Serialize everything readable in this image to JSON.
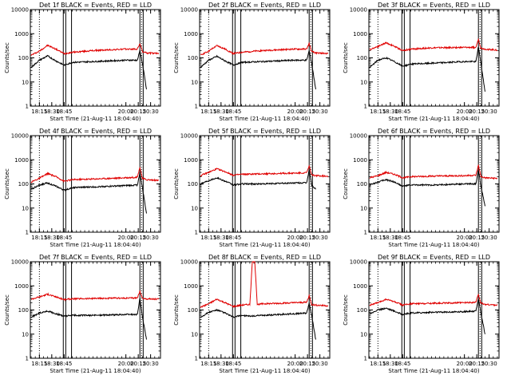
{
  "chart_data": [
    {
      "type": "line",
      "title": "Det 1f BLACK = Events, RED = LLD",
      "xlabel": "Start Time (21-Aug-11 18:04:40)",
      "ylabel": "Counts/sec",
      "yscale": "log",
      "ylim": [
        1,
        10000
      ],
      "xlim": [
        "18:04",
        "20:42"
      ],
      "xticks": [
        "18:15",
        "18:30",
        "18:45",
        "20:00",
        "20:15",
        "20:30"
      ],
      "yticks": [
        "1",
        "10",
        "100",
        "1000",
        "10000"
      ],
      "dotted_vlines": [
        "18:15",
        "20:19"
      ],
      "solid_vlines": [
        "18:44",
        "18:47",
        "18:54",
        "20:17",
        "20:21"
      ],
      "series": [
        {
          "color": "#e00000",
          "x": [
            "18:05",
            "18:15",
            "18:25",
            "18:35",
            "18:45",
            "18:55",
            "19:20",
            "20:00",
            "20:14",
            "20:17",
            "20:20",
            "20:25",
            "20:40"
          ],
          "y": [
            130,
            190,
            330,
            230,
            150,
            170,
            200,
            230,
            230,
            400,
            180,
            160,
            150
          ]
        },
        {
          "color": "#000000",
          "x": [
            "18:05",
            "18:15",
            "18:25",
            "18:35",
            "18:45",
            "18:55",
            "19:20",
            "20:00",
            "20:14",
            "20:17",
            "20:20",
            "20:25"
          ],
          "y": [
            40,
            80,
            120,
            75,
            50,
            65,
            70,
            80,
            80,
            200,
            60,
            5
          ]
        }
      ]
    },
    {
      "type": "line",
      "title": "Det 2f BLACK = Events, RED = LLD",
      "xlabel": "Start Time (21-Aug-11 18:04:40)",
      "ylabel": "Counts/sec",
      "yscale": "log",
      "ylim": [
        1,
        10000
      ],
      "xlim": [
        "18:04",
        "20:42"
      ],
      "xticks": [
        "18:15",
        "18:30",
        "18:45",
        "20:00",
        "20:15",
        "20:30"
      ],
      "yticks": [
        "1",
        "10",
        "100",
        "1000",
        "10000"
      ],
      "dotted_vlines": [
        "18:15",
        "20:19"
      ],
      "solid_vlines": [
        "18:44",
        "18:47",
        "18:54",
        "20:17",
        "20:21"
      ],
      "series": [
        {
          "color": "#e00000",
          "x": [
            "18:05",
            "18:15",
            "18:25",
            "18:35",
            "18:45",
            "18:55",
            "19:20",
            "20:00",
            "20:14",
            "20:17",
            "20:20",
            "20:25",
            "20:40"
          ],
          "y": [
            130,
            190,
            320,
            230,
            150,
            170,
            200,
            230,
            230,
            400,
            180,
            160,
            150
          ]
        },
        {
          "color": "#000000",
          "x": [
            "18:05",
            "18:15",
            "18:25",
            "18:35",
            "18:45",
            "18:55",
            "19:20",
            "20:00",
            "20:14",
            "20:17",
            "20:20",
            "20:25"
          ],
          "y": [
            40,
            80,
            115,
            75,
            50,
            65,
            70,
            80,
            80,
            200,
            60,
            5
          ]
        }
      ]
    },
    {
      "type": "line",
      "title": "Det 3f BLACK = Events, RED = LLD",
      "xlabel": "Start Time (21-Aug-11 18:04:40)",
      "ylabel": "Counts/sec",
      "yscale": "log",
      "ylim": [
        1,
        10000
      ],
      "xlim": [
        "18:04",
        "20:42"
      ],
      "xticks": [
        "18:15",
        "18:30",
        "18:45",
        "20:00",
        "20:15",
        "20:30"
      ],
      "yticks": [
        "1",
        "10",
        "100",
        "1000",
        "10000"
      ],
      "dotted_vlines": [
        "18:15",
        "20:19"
      ],
      "solid_vlines": [
        "18:44",
        "18:47",
        "18:54",
        "20:17",
        "20:21"
      ],
      "series": [
        {
          "color": "#e00000",
          "x": [
            "18:05",
            "18:15",
            "18:25",
            "18:35",
            "18:45",
            "18:55",
            "19:20",
            "20:00",
            "20:14",
            "20:17",
            "20:20",
            "20:25",
            "20:40"
          ],
          "y": [
            220,
            300,
            420,
            300,
            200,
            230,
            260,
            270,
            270,
            600,
            250,
            230,
            210
          ]
        },
        {
          "color": "#000000",
          "x": [
            "18:05",
            "18:15",
            "18:25",
            "18:35",
            "18:45",
            "18:55",
            "19:20",
            "20:00",
            "20:14",
            "20:17",
            "20:20",
            "20:25"
          ],
          "y": [
            40,
            80,
            100,
            70,
            45,
            55,
            60,
            70,
            70,
            300,
            60,
            4
          ]
        }
      ]
    },
    {
      "type": "line",
      "title": "Det 4f BLACK = Events, RED = LLD",
      "xlabel": "Start Time (21-Aug-11 18:04:40)",
      "ylabel": "Counts/sec",
      "yscale": "log",
      "ylim": [
        1,
        10000
      ],
      "xlim": [
        "18:04",
        "20:42"
      ],
      "xticks": [
        "18:15",
        "18:30",
        "18:45",
        "20:00",
        "20:15",
        "20:30"
      ],
      "yticks": [
        "1",
        "10",
        "100",
        "1000",
        "10000"
      ],
      "dotted_vlines": [
        "18:15",
        "20:19"
      ],
      "solid_vlines": [
        "18:44",
        "18:47",
        "18:54",
        "20:17",
        "20:21"
      ],
      "series": [
        {
          "color": "#e00000",
          "x": [
            "18:05",
            "18:15",
            "18:25",
            "18:35",
            "18:45",
            "18:55",
            "19:20",
            "20:00",
            "20:14",
            "20:17",
            "20:20",
            "20:25",
            "20:40"
          ],
          "y": [
            120,
            170,
            270,
            200,
            130,
            150,
            160,
            180,
            190,
            500,
            170,
            150,
            140
          ]
        },
        {
          "color": "#000000",
          "x": [
            "18:05",
            "18:15",
            "18:25",
            "18:35",
            "18:45",
            "18:55",
            "19:20",
            "20:00",
            "20:14",
            "20:17",
            "20:20",
            "20:25"
          ],
          "y": [
            60,
            90,
            110,
            80,
            55,
            70,
            75,
            85,
            90,
            300,
            70,
            6
          ]
        }
      ]
    },
    {
      "type": "line",
      "title": "Det 5f BLACK = Events, RED = LLD",
      "xlabel": "Start Time (21-Aug-11 18:04:40)",
      "ylabel": "Counts/sec",
      "yscale": "log",
      "ylim": [
        1,
        10000
      ],
      "xlim": [
        "18:04",
        "20:42"
      ],
      "xticks": [
        "18:15",
        "18:30",
        "18:45",
        "20:00",
        "20:15",
        "20:30"
      ],
      "yticks": [
        "1",
        "10",
        "100",
        "1000",
        "10000"
      ],
      "dotted_vlines": [
        "18:15",
        "20:19"
      ],
      "solid_vlines": [
        "18:44",
        "18:47",
        "18:54",
        "20:17",
        "20:21"
      ],
      "series": [
        {
          "color": "#e00000",
          "x": [
            "18:05",
            "18:15",
            "18:25",
            "18:35",
            "18:45",
            "18:55",
            "19:20",
            "20:00",
            "20:14",
            "20:17",
            "20:20",
            "20:25",
            "20:40"
          ],
          "y": [
            220,
            300,
            420,
            320,
            230,
            250,
            260,
            280,
            290,
            550,
            240,
            220,
            210
          ]
        },
        {
          "color": "#000000",
          "x": [
            "18:05",
            "18:15",
            "18:25",
            "18:35",
            "18:45",
            "18:55",
            "19:20",
            "20:00",
            "20:14",
            "20:17",
            "20:20",
            "20:25"
          ],
          "y": [
            100,
            140,
            180,
            130,
            90,
            100,
            100,
            110,
            110,
            400,
            90,
            60
          ]
        }
      ]
    },
    {
      "type": "line",
      "title": "Det 6f BLACK = Events, RED = LLD",
      "xlabel": "Start Time (21-Aug-11 18:04:40)",
      "ylabel": "Counts/sec",
      "yscale": "log",
      "ylim": [
        1,
        10000
      ],
      "xlim": [
        "18:04",
        "20:42"
      ],
      "xticks": [
        "18:15",
        "18:30",
        "18:45",
        "20:00",
        "20:15",
        "20:30"
      ],
      "yticks": [
        "1",
        "10",
        "100",
        "1000",
        "10000"
      ],
      "dotted_vlines": [
        "18:15",
        "20:19"
      ],
      "solid_vlines": [
        "18:44",
        "18:47",
        "18:54",
        "20:17",
        "20:21"
      ],
      "series": [
        {
          "color": "#e00000",
          "x": [
            "18:05",
            "18:15",
            "18:25",
            "18:35",
            "18:45",
            "18:55",
            "19:20",
            "20:00",
            "20:14",
            "20:17",
            "20:20",
            "20:25",
            "20:40"
          ],
          "y": [
            180,
            220,
            300,
            250,
            180,
            200,
            210,
            220,
            230,
            600,
            200,
            180,
            170
          ]
        },
        {
          "color": "#000000",
          "x": [
            "18:05",
            "18:15",
            "18:25",
            "18:35",
            "18:45",
            "18:55",
            "19:20",
            "20:00",
            "20:14",
            "20:17",
            "20:20",
            "20:25"
          ],
          "y": [
            90,
            120,
            150,
            120,
            80,
            90,
            90,
            100,
            100,
            400,
            80,
            12
          ]
        }
      ]
    },
    {
      "type": "line",
      "title": "Det 7f BLACK = Events, RED = LLD",
      "xlabel": "Start Time (21-Aug-11 18:04:40)",
      "ylabel": "Counts/sec",
      "yscale": "log",
      "ylim": [
        1,
        10000
      ],
      "xlim": [
        "18:04",
        "20:42"
      ],
      "xticks": [
        "18:15",
        "18:30",
        "18:45",
        "20:00",
        "20:15",
        "20:30"
      ],
      "yticks": [
        "1",
        "10",
        "100",
        "1000",
        "10000"
      ],
      "dotted_vlines": [
        "18:15",
        "20:19"
      ],
      "solid_vlines": [
        "18:44",
        "18:47",
        "18:54",
        "20:17",
        "20:21"
      ],
      "series": [
        {
          "color": "#e00000",
          "x": [
            "18:05",
            "18:15",
            "18:25",
            "18:35",
            "18:45",
            "18:55",
            "19:20",
            "20:00",
            "20:14",
            "20:17",
            "20:20",
            "20:25",
            "20:40"
          ],
          "y": [
            280,
            350,
            450,
            350,
            270,
            290,
            300,
            310,
            320,
            600,
            300,
            290,
            280
          ]
        },
        {
          "color": "#000000",
          "x": [
            "18:05",
            "18:15",
            "18:25",
            "18:35",
            "18:45",
            "18:55",
            "19:20",
            "20:00",
            "20:14",
            "20:17",
            "20:20",
            "20:25"
          ],
          "y": [
            50,
            75,
            90,
            70,
            55,
            60,
            60,
            65,
            65,
            300,
            55,
            6
          ]
        }
      ]
    },
    {
      "type": "line",
      "title": "Det 8f BLACK = Events, RED = LLD",
      "xlabel": "Start Time (21-Aug-11 18:04:40)",
      "ylabel": "Counts/sec",
      "yscale": "log",
      "ylim": [
        1,
        10000
      ],
      "xlim": [
        "18:04",
        "20:42"
      ],
      "xticks": [
        "18:15",
        "18:30",
        "18:45",
        "20:00",
        "20:15",
        "20:30"
      ],
      "yticks": [
        "1",
        "10",
        "100",
        "1000",
        "10000"
      ],
      "dotted_vlines": [
        "18:15",
        "20:19"
      ],
      "solid_vlines": [
        "18:44",
        "18:47",
        "18:54",
        "20:17",
        "20:21"
      ],
      "series": [
        {
          "color": "#e00000",
          "x": [
            "18:05",
            "18:15",
            "18:25",
            "18:35",
            "18:45",
            "18:55",
            "19:05",
            "19:08",
            "19:11",
            "19:14",
            "19:20",
            "20:00",
            "20:14",
            "20:17",
            "20:20",
            "20:25",
            "20:40"
          ],
          "y": [
            130,
            180,
            280,
            200,
            140,
            160,
            170,
            10000,
            10000,
            170,
            180,
            200,
            210,
            400,
            170,
            160,
            150
          ]
        },
        {
          "color": "#000000",
          "x": [
            "18:05",
            "18:15",
            "18:25",
            "18:35",
            "18:45",
            "18:55",
            "19:05",
            "19:20",
            "20:00",
            "20:14",
            "20:17",
            "20:20",
            "20:25"
          ],
          "y": [
            50,
            80,
            100,
            75,
            50,
            60,
            55,
            60,
            70,
            75,
            200,
            60,
            6
          ]
        }
      ]
    },
    {
      "type": "line",
      "title": "Det 9f BLACK = Events, RED = LLD",
      "xlabel": "Start Time (21-Aug-11 18:04:40)",
      "ylabel": "Counts/sec",
      "yscale": "log",
      "ylim": [
        1,
        10000
      ],
      "xlim": [
        "18:04",
        "20:42"
      ],
      "xticks": [
        "18:15",
        "18:30",
        "18:45",
        "20:00",
        "20:15",
        "20:30"
      ],
      "yticks": [
        "1",
        "10",
        "100",
        "1000",
        "10000"
      ],
      "dotted_vlines": [
        "18:15",
        "20:19"
      ],
      "solid_vlines": [
        "18:44",
        "18:47",
        "18:54",
        "20:17",
        "20:21"
      ],
      "series": [
        {
          "color": "#e00000",
          "x": [
            "18:05",
            "18:15",
            "18:25",
            "18:35",
            "18:45",
            "18:55",
            "19:20",
            "20:00",
            "20:14",
            "20:17",
            "20:20",
            "20:25",
            "20:40"
          ],
          "y": [
            160,
            200,
            280,
            220,
            160,
            180,
            190,
            200,
            210,
            450,
            190,
            170,
            160
          ]
        },
        {
          "color": "#000000",
          "x": [
            "18:05",
            "18:15",
            "18:25",
            "18:35",
            "18:45",
            "18:55",
            "19:20",
            "20:00",
            "20:14",
            "20:17",
            "20:20",
            "20:25"
          ],
          "y": [
            70,
            100,
            120,
            90,
            65,
            75,
            80,
            85,
            90,
            300,
            75,
            10
          ]
        }
      ]
    }
  ]
}
